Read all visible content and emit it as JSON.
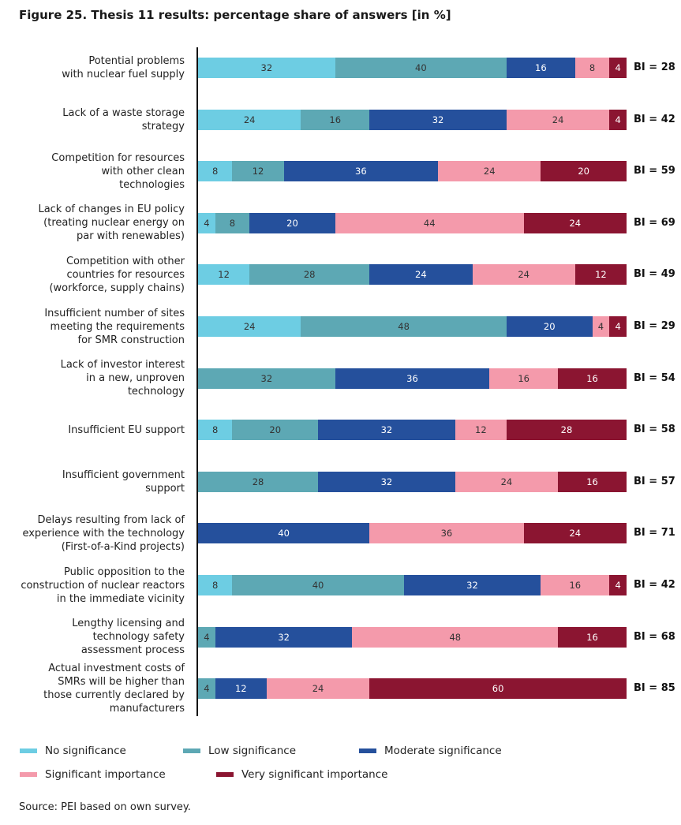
{
  "chart_data": {
    "type": "bar",
    "stacked": true,
    "orientation": "horizontal",
    "title": "Figure 25. Thesis 11 results: percentage share of answers [in %]",
    "xlim": [
      0,
      100
    ],
    "series": [
      {
        "name": "No significance",
        "color": "#6dcde3"
      },
      {
        "name": "Low significance",
        "color": "#5da8b4"
      },
      {
        "name": "Moderate significance",
        "color": "#25509c"
      },
      {
        "name": "Significant importance",
        "color": "#f49aab"
      },
      {
        "name": "Very significant importance",
        "color": "#8b1531"
      }
    ],
    "rows": [
      {
        "label": [
          "Potential problems",
          "with nuclear fuel supply"
        ],
        "values": [
          32,
          40,
          16,
          8,
          4
        ],
        "bi": "BI = 28"
      },
      {
        "label": [
          "Lack of a waste storage",
          "strategy"
        ],
        "values": [
          24,
          16,
          32,
          24,
          4
        ],
        "bi": "BI = 42"
      },
      {
        "label": [
          "Competition for resources",
          "with other clean",
          "technologies"
        ],
        "values": [
          8,
          12,
          36,
          24,
          20
        ],
        "bi": "BI = 59"
      },
      {
        "label": [
          "Lack of changes in EU policy",
          "(treating nuclear energy on",
          "par with renewables)"
        ],
        "values": [
          4,
          8,
          20,
          44,
          24
        ],
        "bi": "BI = 69"
      },
      {
        "label": [
          "Competition with other",
          "countries for resources",
          "(workforce, supply chains)"
        ],
        "values": [
          12,
          28,
          24,
          24,
          12
        ],
        "bi": "BI = 49"
      },
      {
        "label": [
          "Insufficient number of sites",
          "meeting the requirements",
          "for SMR construction"
        ],
        "values": [
          24,
          48,
          20,
          4,
          4
        ],
        "bi": "BI = 29"
      },
      {
        "label": [
          "Lack of investor interest",
          "in a new, unproven",
          "technology"
        ],
        "values": [
          0,
          32,
          36,
          16,
          16
        ],
        "bi": "BI = 54"
      },
      {
        "label": [
          "Insufficient EU support"
        ],
        "values": [
          8,
          20,
          32,
          12,
          28
        ],
        "bi": "BI = 58"
      },
      {
        "label": [
          "Insufficient government",
          "support"
        ],
        "values": [
          0,
          28,
          32,
          24,
          16
        ],
        "bi": "BI = 57"
      },
      {
        "label": [
          "Delays resulting from lack of",
          "experience with the technology",
          "(First-of-a-Kind projects)"
        ],
        "values": [
          0,
          0,
          40,
          36,
          24
        ],
        "bi": "BI = 71"
      },
      {
        "label": [
          "Public opposition to the",
          "construction of nuclear reactors",
          "in the immediate vicinity"
        ],
        "values": [
          8,
          40,
          32,
          16,
          4
        ],
        "bi": "BI = 42"
      },
      {
        "label": [
          "Lengthy licensing and",
          "technology safety",
          "assessment process"
        ],
        "values": [
          0,
          4,
          32,
          48,
          16
        ],
        "bi": "BI = 68"
      },
      {
        "label": [
          "Actual investment costs of",
          "SMRs will be higher than",
          "those currently declared by",
          "manufacturers"
        ],
        "values": [
          0,
          4,
          12,
          24,
          60
        ],
        "bi": "BI = 85"
      }
    ],
    "source": "Source: PEI based on own survey."
  }
}
